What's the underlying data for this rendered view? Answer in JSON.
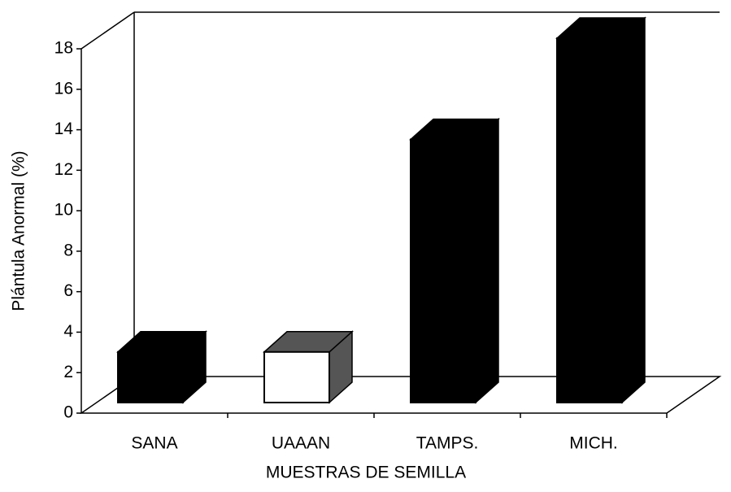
{
  "chart_data": {
    "type": "bar3d",
    "x_label": "MUESTRAS DE SEMILLA",
    "y_label": "Plántula Anormal (%)",
    "categories": [
      "SANA",
      "UAAAN",
      "TAMPS.",
      "MICH."
    ],
    "values": [
      2.5,
      2.5,
      13,
      18
    ],
    "colors": [
      "#000000",
      "#ffffff",
      "#000000",
      "#000000"
    ],
    "ylim": [
      0,
      18
    ],
    "yticks": [
      0,
      2,
      4,
      6,
      8,
      10,
      12,
      14,
      16,
      18
    ]
  }
}
